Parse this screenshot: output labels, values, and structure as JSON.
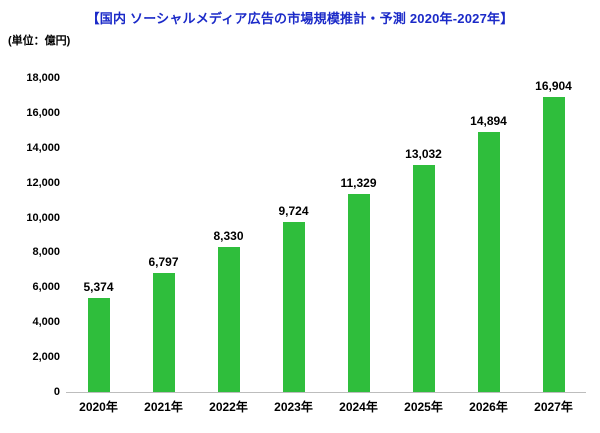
{
  "chart": {
    "title": "【国内 ソーシャルメディア広告の市場規模推計・予測 2020年-2027年】",
    "unit_label": "(単位：億円)"
  },
  "chart_data": {
    "type": "bar",
    "title": "【国内 ソーシャルメディア広告の市場規模推計・予測 2020年-2027年】",
    "unit": "億円",
    "categories": [
      "2020年",
      "2021年",
      "2022年",
      "2023年",
      "2024年",
      "2025年",
      "2026年",
      "2027年"
    ],
    "values": [
      5374,
      6797,
      8330,
      9724,
      11329,
      13032,
      14894,
      16904
    ],
    "value_labels": [
      "5,374",
      "6,797",
      "8,330",
      "9,724",
      "11,329",
      "13,032",
      "14,894",
      "16,904"
    ],
    "xlabel": "",
    "ylabel": "",
    "ylim": [
      0,
      18000
    ],
    "y_tick_step": 2000,
    "y_tick_labels": [
      "0",
      "2,000",
      "4,000",
      "6,000",
      "8,000",
      "10,000",
      "12,000",
      "14,000",
      "16,000",
      "18,000"
    ],
    "bar_color": "#2fbe3c",
    "title_color": "#1b2ac8",
    "axis_line_color": "#bdbdbd",
    "grid": false,
    "legend": "none"
  }
}
